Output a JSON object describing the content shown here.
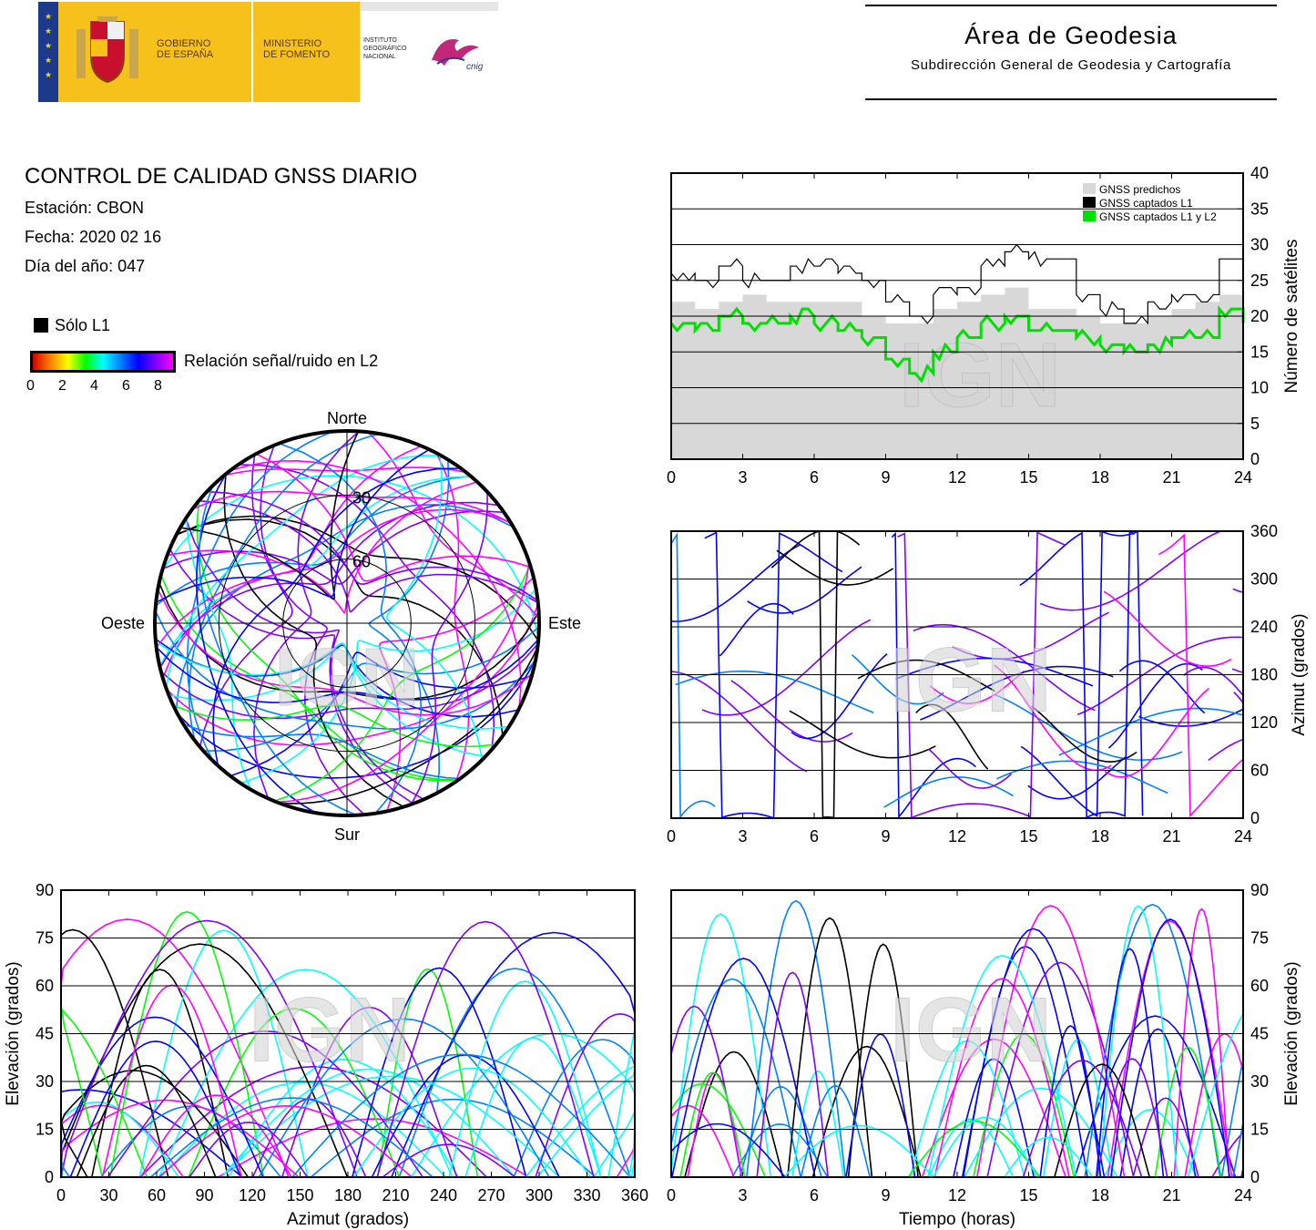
{
  "header": {
    "gov_line1": "GOBIERNO",
    "gov_line2": "DE ESPAÑA",
    "min_line1": "MINISTERIO",
    "min_line2": "DE FOMENTO",
    "ign_line1": "INSTITUTO",
    "ign_line2": "GEOGRÁFICO",
    "ign_line3": "NACIONAL",
    "cnig": "cnig",
    "area_title": "Área de Geodesia",
    "area_subtitle": "Subdirección General de Geodesia y Cartografía"
  },
  "info": {
    "title": "CONTROL DE CALIDAD GNSS DIARIO",
    "station": "Estación: CBON",
    "date": "Fecha: 2020 02 16",
    "doy": "Día del año: 047",
    "legend_l1": "Sólo L1",
    "colorbar_label": "Relación señal/ruido en L2",
    "colorbar_ticks": [
      "0",
      "2",
      "4",
      "6",
      "8"
    ]
  },
  "colors": {
    "predicted": "#d8d8d8",
    "l1": "#000000",
    "l1l2": "#00e000",
    "snr_scale": [
      "#d00000",
      "#ff8000",
      "#ffff00",
      "#00ff00",
      "#00ffff",
      "#0080ff",
      "#0000ff",
      "#8000ff",
      "#ff00ff"
    ]
  },
  "watermark": "IGN",
  "chart_data": [
    {
      "id": "satellite-count",
      "type": "line",
      "xlabel": "",
      "ylabel": "Número de satélites",
      "xlim": [
        0,
        24
      ],
      "ylim": [
        0,
        40
      ],
      "xticks": [
        "0",
        "3",
        "6",
        "9",
        "12",
        "15",
        "18",
        "21",
        "24"
      ],
      "yticks": [
        "0",
        "5",
        "10",
        "15",
        "20",
        "25",
        "30",
        "35",
        "40"
      ],
      "legend": [
        "GNSS predichos",
        "GNSS captados L1",
        "GNSS captados L1 y L2"
      ],
      "legend_position": "top-right",
      "x": [
        0,
        1,
        2,
        3,
        4,
        5,
        6,
        7,
        8,
        9,
        10,
        11,
        12,
        13,
        14,
        15,
        16,
        17,
        18,
        19,
        20,
        21,
        22,
        23,
        24
      ],
      "series": [
        {
          "name": "GNSS predichos",
          "values": [
            22,
            21,
            22,
            23,
            22,
            22,
            22,
            22,
            20,
            19,
            19,
            21,
            22,
            23,
            24,
            21,
            21,
            20,
            19,
            19,
            20,
            21,
            22,
            23,
            22
          ]
        },
        {
          "name": "GNSS captados L1",
          "values": [
            26,
            25,
            27,
            25,
            25,
            27,
            27,
            26,
            25,
            22,
            20,
            23,
            24,
            27,
            29,
            28,
            28,
            23,
            21,
            19,
            22,
            23,
            23,
            28,
            29
          ]
        },
        {
          "name": "GNSS captados L1 y L2",
          "values": [
            19,
            18,
            20,
            19,
            19,
            20,
            19,
            18,
            17,
            14,
            12,
            15,
            17,
            19,
            20,
            18,
            18,
            17,
            16,
            15,
            16,
            17,
            17,
            21,
            19
          ]
        }
      ]
    },
    {
      "id": "azimuth-time",
      "type": "scatter",
      "xlabel": "",
      "ylabel": "Azimut (grados)",
      "xlim": [
        0,
        24
      ],
      "ylim": [
        0,
        360
      ],
      "xticks": [
        "0",
        "3",
        "6",
        "9",
        "12",
        "15",
        "18",
        "21",
        "24"
      ],
      "yticks": [
        "0",
        "60",
        "120",
        "180",
        "240",
        "300",
        "360"
      ]
    },
    {
      "id": "skyplot",
      "type": "scatter",
      "labels": {
        "north": "Norte",
        "south": "Sur",
        "east": "Este",
        "west": "Oeste"
      },
      "rings": [
        "30",
        "60"
      ]
    },
    {
      "id": "elevation-azimuth",
      "type": "scatter",
      "xlabel": "Azimut (grados)",
      "ylabel": "Elevación (grados)",
      "xlim": [
        0,
        360
      ],
      "ylim": [
        0,
        90
      ],
      "xticks": [
        "0",
        "30",
        "60",
        "90",
        "120",
        "150",
        "180",
        "210",
        "240",
        "270",
        "300",
        "330",
        "360"
      ],
      "yticks": [
        "0",
        "15",
        "30",
        "45",
        "60",
        "75",
        "90"
      ]
    },
    {
      "id": "elevation-time",
      "type": "scatter",
      "xlabel": "Tiempo (horas)",
      "ylabel": "Elevación (grados)",
      "xlim": [
        0,
        24
      ],
      "ylim": [
        0,
        90
      ],
      "xticks": [
        "0",
        "3",
        "6",
        "9",
        "12",
        "15",
        "18",
        "21",
        "24"
      ],
      "yticks": [
        "0",
        "15",
        "30",
        "45",
        "60",
        "75",
        "90"
      ]
    }
  ]
}
